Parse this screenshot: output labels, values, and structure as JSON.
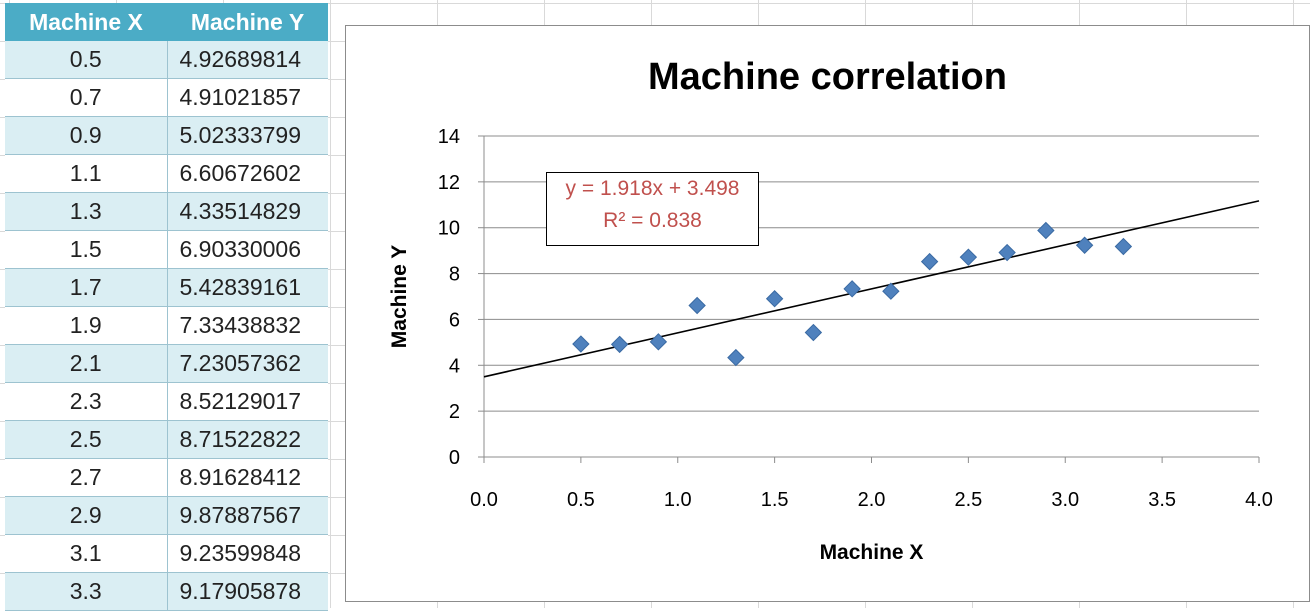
{
  "table": {
    "headers": [
      "Machine X",
      "Machine Y"
    ],
    "rows": [
      {
        "x": "0.5",
        "y": "4.92689814"
      },
      {
        "x": "0.7",
        "y": "4.91021857"
      },
      {
        "x": "0.9",
        "y": "5.02333799"
      },
      {
        "x": "1.1",
        "y": "6.60672602"
      },
      {
        "x": "1.3",
        "y": "4.33514829"
      },
      {
        "x": "1.5",
        "y": "6.90330006"
      },
      {
        "x": "1.7",
        "y": "5.42839161"
      },
      {
        "x": "1.9",
        "y": "7.33438832"
      },
      {
        "x": "2.1",
        "y": "7.23057362"
      },
      {
        "x": "2.3",
        "y": "8.52129017"
      },
      {
        "x": "2.5",
        "y": "8.71522822"
      },
      {
        "x": "2.7",
        "y": "8.91628412"
      },
      {
        "x": "2.9",
        "y": "9.87887567"
      },
      {
        "x": "3.1",
        "y": "9.23599848"
      },
      {
        "x": "3.3",
        "y": "9.17905878"
      }
    ]
  },
  "chart_data": {
    "type": "scatter",
    "title": "Machine correlation",
    "xlabel": "Machine X",
    "ylabel": "Machine Y",
    "xlim": [
      0,
      4
    ],
    "ylim": [
      0,
      14
    ],
    "x_ticks": [
      "0.0",
      "0.5",
      "1.0",
      "1.5",
      "2.0",
      "2.5",
      "3.0",
      "3.5",
      "4.0"
    ],
    "y_ticks": [
      "0",
      "2",
      "4",
      "6",
      "8",
      "10",
      "12",
      "14"
    ],
    "grid": true,
    "legend": "none",
    "series": [
      {
        "name": "Machine Y",
        "marker": "diamond",
        "color": "#4f81bd",
        "x": [
          0.5,
          0.7,
          0.9,
          1.1,
          1.3,
          1.5,
          1.7,
          1.9,
          2.1,
          2.3,
          2.5,
          2.7,
          2.9,
          3.1,
          3.3
        ],
        "y": [
          4.92689814,
          4.91021857,
          5.02333799,
          6.60672602,
          4.33514829,
          6.90330006,
          5.42839161,
          7.33438832,
          7.23057362,
          8.52129017,
          8.71522822,
          8.91628412,
          9.87887567,
          9.23599848,
          9.17905878
        ]
      }
    ],
    "trendline": {
      "type": "linear",
      "slope": 1.918,
      "intercept": 3.498,
      "equation": "y = 1.918x + 3.498",
      "r_squared": "R² = 0.838",
      "color": "#000000",
      "label_color": "#c0504d"
    }
  }
}
